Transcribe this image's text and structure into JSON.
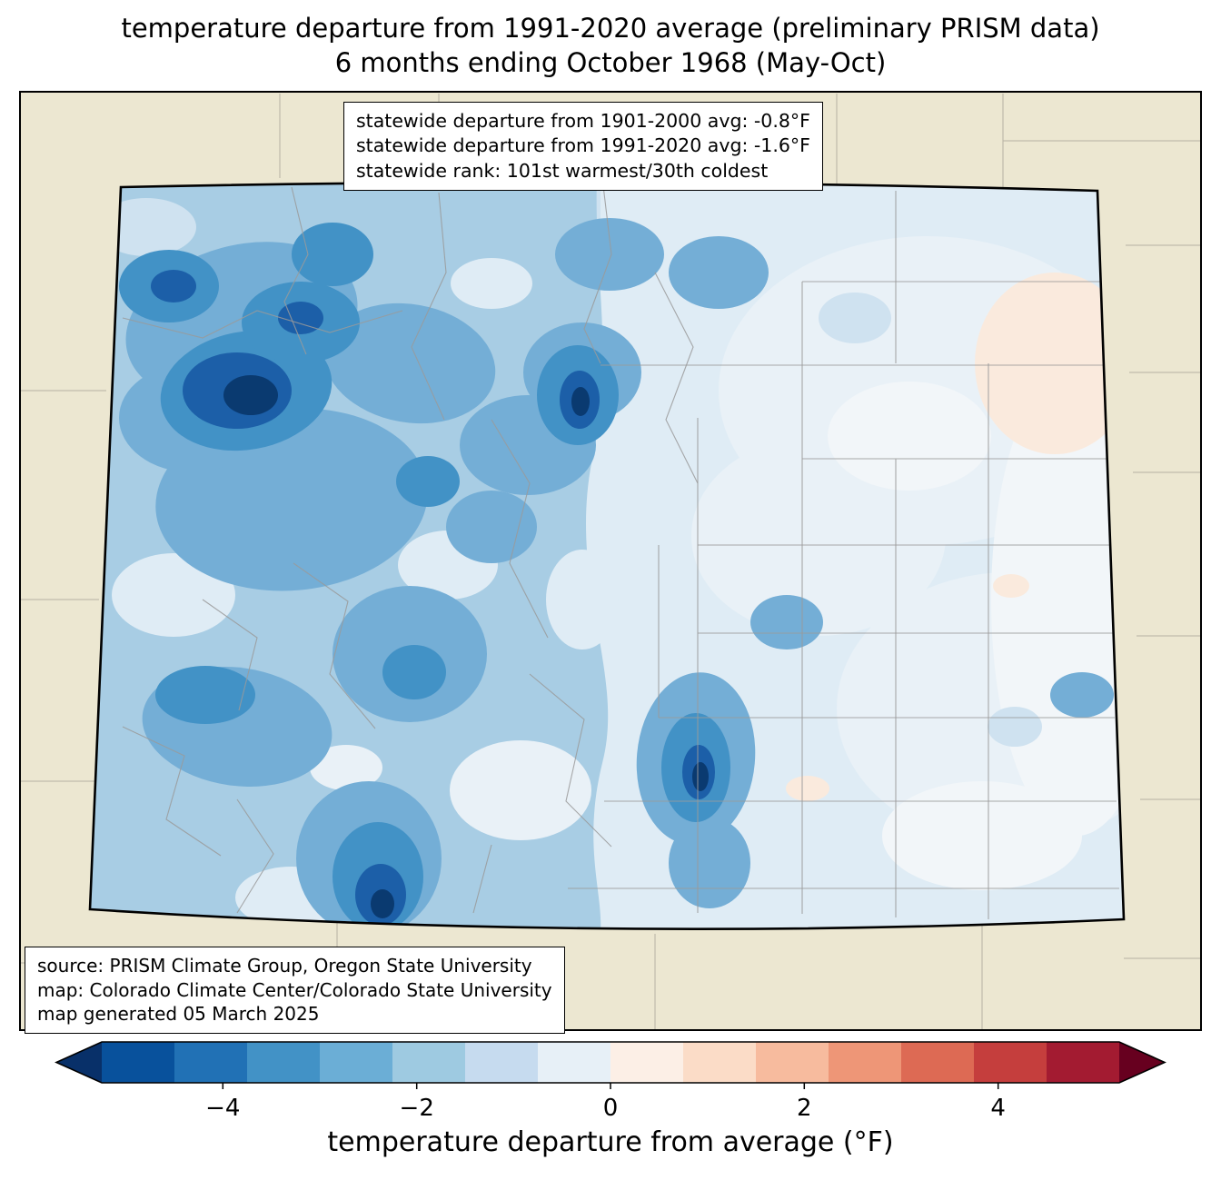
{
  "title": {
    "line1": "temperature departure from 1991-2020 average (preliminary PRISM data)",
    "line2": "6 months ending October 1968 (May-Oct)"
  },
  "stats_box": {
    "line1": "statewide departure from 1901-2000 avg: -0.8°F",
    "line2": "statewide departure from 1991-2020 avg: -1.6°F",
    "line3": "statewide rank: 101st warmest/30th coldest"
  },
  "credits_box": {
    "line1": "source: PRISM Climate Group, Oregon State University",
    "line2": "map: Colorado Climate Center/Colorado State University",
    "line3": "map generated 05 March 2025"
  },
  "colorbar": {
    "label": "temperature departure from average (°F)",
    "ticks": [
      "−4",
      "−2",
      "0",
      "2",
      "4"
    ],
    "tick_values": [
      -4,
      -2,
      0,
      2,
      4
    ],
    "range": [
      -5.25,
      5.25
    ],
    "segment_colors": [
      "#08519c",
      "#2171b5",
      "#4292c6",
      "#6baed6",
      "#9ecae1",
      "#c6dbef",
      "#e7f0f7",
      "#fcefe6",
      "#fbdcc7",
      "#f7bb9e",
      "#ee9677",
      "#dd6a54",
      "#c53e3d",
      "#a31b31"
    ],
    "left_arrow_color": "#083069",
    "right_arrow_color": "#67001f"
  },
  "map": {
    "region": "Colorado",
    "period": "May-Oct 1968",
    "background_outside": "#ece7d1",
    "state_border_color": "#000000",
    "county_line_color": "#9a9a9a",
    "palette": {
      "darkest_blue": "#0a3a70",
      "dark_blue": "#1c5fa8",
      "medium_dark_blue": "#4292c6",
      "medium_blue": "#74aed6",
      "light_medium_blue": "#a8cde4",
      "light_blue": "#cfe2f0",
      "pale_blue": "#dfecf5",
      "very_pale_blue": "#e9f1f7",
      "near_white": "#f2f6f9",
      "pale_pink": "#faeadd",
      "outside_fill": "#ece7d1",
      "county_line": "#9a9a9a"
    }
  }
}
